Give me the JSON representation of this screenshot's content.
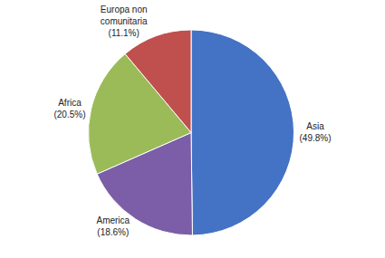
{
  "chart_data": {
    "type": "pie",
    "categories": [
      "Asia",
      "America",
      "Africa",
      "Europa non\ncomunitaria"
    ],
    "values": [
      49.8,
      18.6,
      20.5,
      11.1
    ],
    "value_labels": [
      "(49.8%)",
      "(18.6%)",
      "(20.5%)",
      "(11.1%)"
    ],
    "colors": [
      "#4472C4",
      "#7B5EA7",
      "#9BBB59",
      "#C0504D"
    ],
    "data_labels": true
  }
}
